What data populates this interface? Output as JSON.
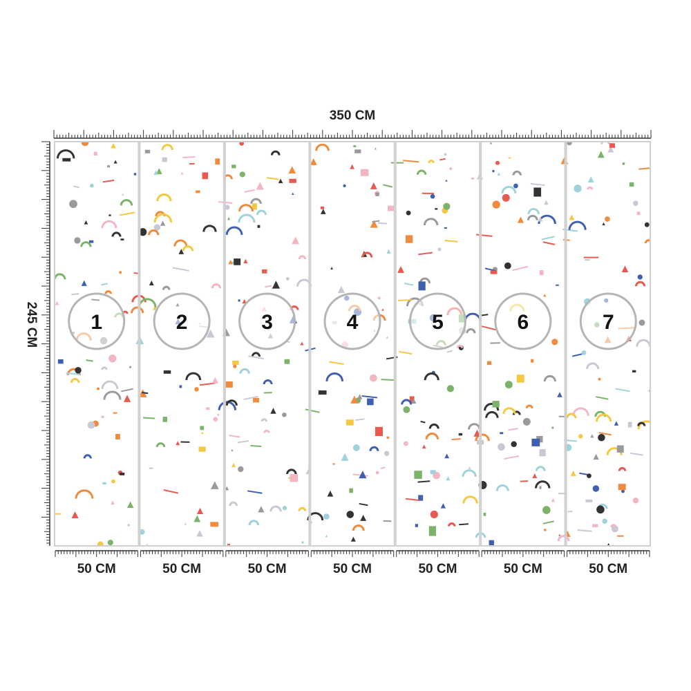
{
  "width_label": "350 CM",
  "height_label": "245 CM",
  "panels": [
    {
      "number": 1,
      "width": "50 CM"
    },
    {
      "number": 2,
      "width": "50 CM"
    },
    {
      "number": 3,
      "width": "50 CM"
    },
    {
      "number": 4,
      "width": "50 CM"
    },
    {
      "number": 5,
      "width": "50 CM"
    },
    {
      "number": 6,
      "width": "50 CM"
    },
    {
      "number": 7,
      "width": "50 CM"
    }
  ]
}
